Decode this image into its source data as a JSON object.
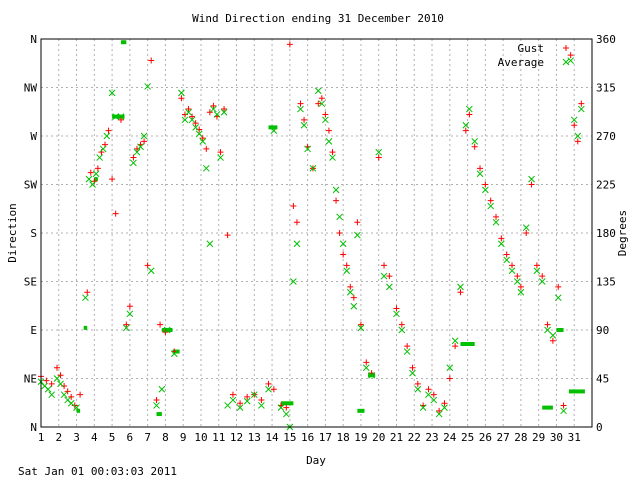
{
  "chart_data": {
    "type": "scatter",
    "title": "Wind Direction ending 31 December 2010",
    "xlabel": "Day",
    "ylabel_left": "Direction",
    "ylabel_right": "Degrees",
    "xlim": [
      1,
      32
    ],
    "ylim": [
      0,
      360
    ],
    "x_ticks": [
      1,
      2,
      3,
      4,
      5,
      6,
      7,
      8,
      9,
      10,
      11,
      12,
      13,
      14,
      15,
      16,
      17,
      18,
      19,
      20,
      21,
      22,
      23,
      24,
      25,
      26,
      27,
      28,
      29,
      30,
      31
    ],
    "y_ticks_left": [
      {
        "value": 0,
        "label": "N"
      },
      {
        "value": 45,
        "label": "NE"
      },
      {
        "value": 90,
        "label": "E"
      },
      {
        "value": 135,
        "label": "SE"
      },
      {
        "value": 180,
        "label": "S"
      },
      {
        "value": 225,
        "label": "SW"
      },
      {
        "value": 270,
        "label": "W"
      },
      {
        "value": 315,
        "label": "NW"
      },
      {
        "value": 360,
        "label": "N"
      }
    ],
    "y_ticks_right": [
      0,
      45,
      90,
      135,
      180,
      225,
      270,
      315,
      360
    ],
    "grid": true,
    "legend_position": "top-right",
    "series": [
      {
        "name": "Gust",
        "marker": "plus",
        "color": "#ff0000",
        "points": [
          [
            1.0,
            47
          ],
          [
            1.3,
            43
          ],
          [
            1.6,
            40
          ],
          [
            1.9,
            55
          ],
          [
            2.1,
            48
          ],
          [
            2.3,
            38
          ],
          [
            2.5,
            33
          ],
          [
            2.7,
            28
          ],
          [
            2.9,
            20
          ],
          [
            3.2,
            30
          ],
          [
            3.6,
            125
          ],
          [
            3.8,
            236
          ],
          [
            4.0,
            228
          ],
          [
            4.2,
            240
          ],
          [
            4.4,
            255
          ],
          [
            4.6,
            262
          ],
          [
            4.8,
            275
          ],
          [
            5.0,
            230
          ],
          [
            5.2,
            198
          ],
          [
            5.5,
            285
          ],
          [
            5.8,
            95
          ],
          [
            6.0,
            112
          ],
          [
            6.2,
            250
          ],
          [
            6.4,
            258
          ],
          [
            6.6,
            262
          ],
          [
            6.8,
            265
          ],
          [
            7.0,
            150
          ],
          [
            7.2,
            340
          ],
          [
            7.5,
            25
          ],
          [
            7.7,
            95
          ],
          [
            8.0,
            88
          ],
          [
            8.5,
            70
          ],
          [
            8.9,
            305
          ],
          [
            9.1,
            290
          ],
          [
            9.3,
            295
          ],
          [
            9.5,
            288
          ],
          [
            9.7,
            282
          ],
          [
            9.9,
            276
          ],
          [
            10.1,
            268
          ],
          [
            10.3,
            258
          ],
          [
            10.5,
            292
          ],
          [
            10.7,
            298
          ],
          [
            10.9,
            288
          ],
          [
            11.1,
            255
          ],
          [
            11.3,
            295
          ],
          [
            11.5,
            178
          ],
          [
            11.8,
            30
          ],
          [
            12.2,
            22
          ],
          [
            12.6,
            28
          ],
          [
            13.0,
            30
          ],
          [
            13.4,
            25
          ],
          [
            13.8,
            40
          ],
          [
            14.1,
            35
          ],
          [
            14.5,
            20
          ],
          [
            14.8,
            18
          ],
          [
            15.0,
            355
          ],
          [
            15.2,
            205
          ],
          [
            15.4,
            190
          ],
          [
            15.6,
            300
          ],
          [
            15.8,
            285
          ],
          [
            16.0,
            260
          ],
          [
            16.3,
            240
          ],
          [
            16.6,
            300
          ],
          [
            16.8,
            305
          ],
          [
            17.0,
            290
          ],
          [
            17.2,
            275
          ],
          [
            17.4,
            255
          ],
          [
            17.6,
            210
          ],
          [
            17.8,
            180
          ],
          [
            18.0,
            160
          ],
          [
            18.2,
            150
          ],
          [
            18.4,
            130
          ],
          [
            18.6,
            120
          ],
          [
            18.8,
            190
          ],
          [
            19.0,
            95
          ],
          [
            19.3,
            60
          ],
          [
            19.6,
            50
          ],
          [
            20.0,
            250
          ],
          [
            20.3,
            150
          ],
          [
            20.6,
            140
          ],
          [
            21.0,
            110
          ],
          [
            21.3,
            95
          ],
          [
            21.6,
            75
          ],
          [
            21.9,
            55
          ],
          [
            22.2,
            40
          ],
          [
            22.5,
            20
          ],
          [
            22.8,
            35
          ],
          [
            23.1,
            30
          ],
          [
            23.4,
            15
          ],
          [
            23.7,
            22
          ],
          [
            24.0,
            45
          ],
          [
            24.3,
            75
          ],
          [
            24.6,
            125
          ],
          [
            24.9,
            275
          ],
          [
            25.1,
            290
          ],
          [
            25.4,
            260
          ],
          [
            25.7,
            240
          ],
          [
            26.0,
            225
          ],
          [
            26.3,
            210
          ],
          [
            26.6,
            195
          ],
          [
            26.9,
            175
          ],
          [
            27.2,
            160
          ],
          [
            27.5,
            150
          ],
          [
            27.8,
            140
          ],
          [
            28.0,
            130
          ],
          [
            28.3,
            180
          ],
          [
            28.6,
            225
          ],
          [
            28.9,
            150
          ],
          [
            29.2,
            140
          ],
          [
            29.5,
            95
          ],
          [
            29.8,
            80
          ],
          [
            30.1,
            130
          ],
          [
            30.4,
            20
          ],
          [
            30.8,
            345
          ],
          [
            31.0,
            280
          ],
          [
            31.2,
            265
          ],
          [
            31.4,
            300
          ]
        ]
      },
      {
        "name": "Average",
        "marker": "cross",
        "color": "#00c000",
        "points": [
          [
            1.0,
            42
          ],
          [
            1.2,
            38
          ],
          [
            1.4,
            35
          ],
          [
            1.6,
            30
          ],
          [
            1.9,
            45
          ],
          [
            2.1,
            40
          ],
          [
            2.3,
            30
          ],
          [
            2.5,
            25
          ],
          [
            2.7,
            22
          ],
          [
            3.0,
            18
          ],
          [
            3.5,
            120
          ],
          [
            3.7,
            230
          ],
          [
            3.9,
            225
          ],
          [
            4.1,
            235
          ],
          [
            4.3,
            250
          ],
          [
            4.5,
            258
          ],
          [
            4.7,
            270
          ],
          [
            5.0,
            310
          ],
          [
            5.2,
            288
          ],
          [
            5.5,
            288
          ],
          [
            5.8,
            92
          ],
          [
            6.0,
            105
          ],
          [
            6.2,
            245
          ],
          [
            6.4,
            255
          ],
          [
            6.6,
            260
          ],
          [
            6.8,
            270
          ],
          [
            7.0,
            316
          ],
          [
            7.2,
            145
          ],
          [
            7.5,
            20
          ],
          [
            7.8,
            35
          ],
          [
            8.1,
            90
          ],
          [
            8.5,
            68
          ],
          [
            8.9,
            310
          ],
          [
            9.1,
            285
          ],
          [
            9.3,
            292
          ],
          [
            9.5,
            285
          ],
          [
            9.7,
            278
          ],
          [
            9.9,
            272
          ],
          [
            10.1,
            265
          ],
          [
            10.3,
            240
          ],
          [
            10.5,
            170
          ],
          [
            10.7,
            295
          ],
          [
            10.9,
            290
          ],
          [
            11.1,
            250
          ],
          [
            11.3,
            292
          ],
          [
            11.5,
            20
          ],
          [
            11.8,
            25
          ],
          [
            12.2,
            18
          ],
          [
            12.6,
            24
          ],
          [
            13.0,
            30
          ],
          [
            13.4,
            20
          ],
          [
            13.8,
            35
          ],
          [
            14.1,
            275
          ],
          [
            14.5,
            18
          ],
          [
            14.8,
            12
          ],
          [
            15.0,
            0
          ],
          [
            15.2,
            135
          ],
          [
            15.4,
            170
          ],
          [
            15.6,
            295
          ],
          [
            15.8,
            280
          ],
          [
            16.0,
            258
          ],
          [
            16.3,
            240
          ],
          [
            16.6,
            312
          ],
          [
            16.8,
            300
          ],
          [
            17.0,
            285
          ],
          [
            17.2,
            265
          ],
          [
            17.4,
            250
          ],
          [
            17.6,
            220
          ],
          [
            17.8,
            195
          ],
          [
            18.0,
            170
          ],
          [
            18.2,
            145
          ],
          [
            18.4,
            125
          ],
          [
            18.6,
            112
          ],
          [
            18.8,
            178
          ],
          [
            19.0,
            92
          ],
          [
            19.3,
            55
          ],
          [
            19.6,
            48
          ],
          [
            20.0,
            255
          ],
          [
            20.3,
            140
          ],
          [
            20.6,
            130
          ],
          [
            21.0,
            105
          ],
          [
            21.3,
            90
          ],
          [
            21.6,
            70
          ],
          [
            21.9,
            50
          ],
          [
            22.2,
            35
          ],
          [
            22.5,
            18
          ],
          [
            22.8,
            30
          ],
          [
            23.1,
            25
          ],
          [
            23.4,
            12
          ],
          [
            23.7,
            18
          ],
          [
            24.0,
            55
          ],
          [
            24.3,
            80
          ],
          [
            24.6,
            130
          ],
          [
            24.9,
            280
          ],
          [
            25.1,
            295
          ],
          [
            25.4,
            265
          ],
          [
            25.7,
            235
          ],
          [
            26.0,
            220
          ],
          [
            26.3,
            205
          ],
          [
            26.6,
            190
          ],
          [
            26.9,
            170
          ],
          [
            27.2,
            155
          ],
          [
            27.5,
            145
          ],
          [
            27.8,
            135
          ],
          [
            28.0,
            125
          ],
          [
            28.3,
            185
          ],
          [
            28.6,
            230
          ],
          [
            28.9,
            145
          ],
          [
            29.2,
            135
          ],
          [
            29.5,
            90
          ],
          [
            29.8,
            85
          ],
          [
            30.1,
            120
          ],
          [
            30.4,
            15
          ],
          [
            30.8,
            340
          ],
          [
            31.0,
            285
          ],
          [
            31.2,
            270
          ],
          [
            31.4,
            295
          ]
        ]
      }
    ],
    "bar_segments": [
      {
        "x0": 3.0,
        "x1": 3.2,
        "y": 15
      },
      {
        "x0": 3.4,
        "x1": 3.6,
        "y": 92
      },
      {
        "x0": 4.0,
        "x1": 4.2,
        "y": 230
      },
      {
        "x0": 5.0,
        "x1": 5.7,
        "y": 288
      },
      {
        "x0": 5.5,
        "x1": 5.8,
        "y": 357
      },
      {
        "x0": 7.5,
        "x1": 7.8,
        "y": 12
      },
      {
        "x0": 7.8,
        "x1": 8.4,
        "y": 90
      },
      {
        "x0": 8.4,
        "x1": 8.8,
        "y": 70
      },
      {
        "x0": 13.8,
        "x1": 14.3,
        "y": 278
      },
      {
        "x0": 14.5,
        "x1": 15.2,
        "y": 22
      },
      {
        "x0": 18.8,
        "x1": 19.2,
        "y": 15
      },
      {
        "x0": 19.4,
        "x1": 19.8,
        "y": 48
      },
      {
        "x0": 24.6,
        "x1": 25.4,
        "y": 77
      },
      {
        "x0": 29.2,
        "x1": 29.8,
        "y": 18
      },
      {
        "x0": 30.0,
        "x1": 30.4,
        "y": 90
      },
      {
        "x0": 30.7,
        "x1": 31.6,
        "y": 33
      }
    ]
  },
  "footer": {
    "timestamp": "Sat Jan 01 00:03:03 2011"
  }
}
